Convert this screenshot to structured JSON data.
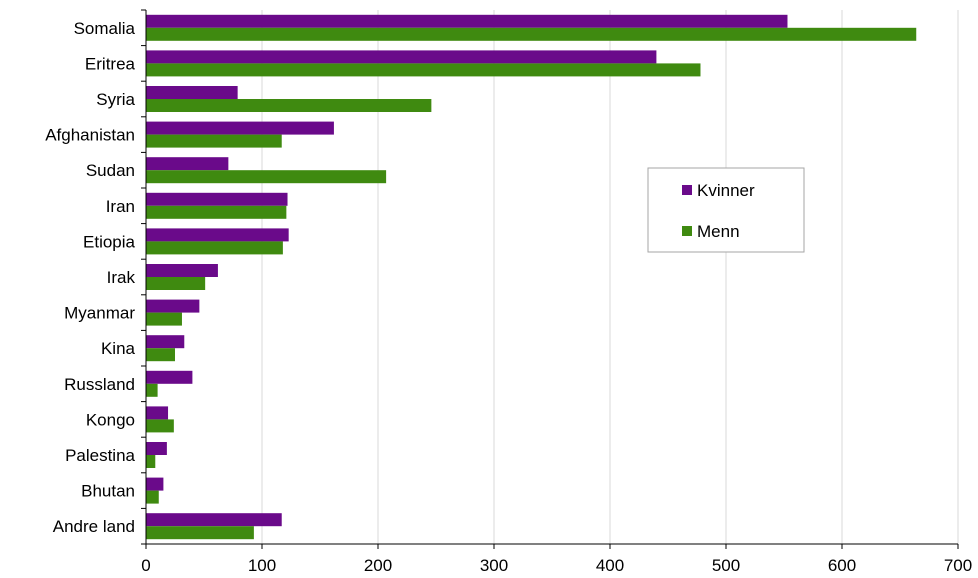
{
  "chart_data": {
    "type": "bar",
    "orientation": "horizontal",
    "categories": [
      "Somalia",
      "Eritrea",
      "Syria",
      "Afghanistan",
      "Sudan",
      "Iran",
      "Etiopia",
      "Irak",
      "Myanmar",
      "Kina",
      "Russland",
      "Kongo",
      "Palestina",
      "Bhutan",
      "Andre land"
    ],
    "series": [
      {
        "name": "Kvinner",
        "color": "#6a0a8a",
        "values": [
          553,
          440,
          79,
          162,
          71,
          122,
          123,
          62,
          46,
          33,
          40,
          19,
          18,
          15,
          117
        ]
      },
      {
        "name": "Menn",
        "color": "#3f8a10",
        "values": [
          664,
          478,
          246,
          117,
          207,
          121,
          118,
          51,
          31,
          25,
          10,
          24,
          8,
          11,
          93
        ]
      }
    ],
    "xlim": [
      0,
      700
    ],
    "xticks": [
      0,
      100,
      200,
      300,
      400,
      500,
      600,
      700
    ],
    "grid": true,
    "legend_position": "upper-right, inside plot"
  }
}
